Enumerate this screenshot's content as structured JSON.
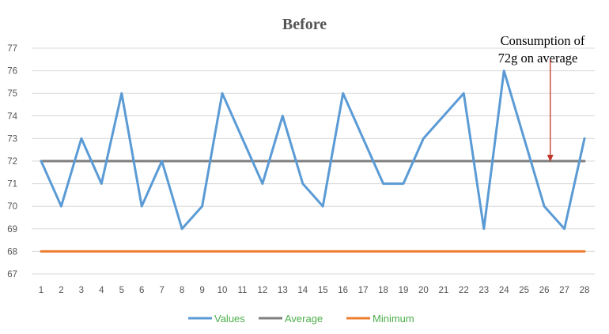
{
  "chart_data": {
    "type": "line",
    "title": "Before",
    "xlabel": "",
    "ylabel": "",
    "x": [
      1,
      2,
      3,
      4,
      5,
      6,
      7,
      8,
      9,
      10,
      11,
      12,
      13,
      14,
      15,
      16,
      17,
      18,
      19,
      20,
      21,
      22,
      23,
      24,
      25,
      26,
      27,
      28
    ],
    "ylim": [
      67,
      77
    ],
    "yticks": [
      67,
      68,
      69,
      70,
      71,
      72,
      73,
      74,
      75,
      76,
      77
    ],
    "grid": true,
    "legend_position": "bottom",
    "series": [
      {
        "name": "Values",
        "color": "#5b9bd5",
        "values": [
          72,
          70,
          73,
          71,
          75,
          70,
          72,
          69,
          70,
          75,
          73,
          71,
          74,
          71,
          70,
          75,
          73,
          71,
          71,
          73,
          74,
          75,
          69,
          76,
          73,
          70,
          69,
          73
        ]
      },
      {
        "name": "Average",
        "color": "#7f7f7f",
        "values": [
          72,
          72,
          72,
          72,
          72,
          72,
          72,
          72,
          72,
          72,
          72,
          72,
          72,
          72,
          72,
          72,
          72,
          72,
          72,
          72,
          72,
          72,
          72,
          72,
          72,
          72,
          72,
          72
        ]
      },
      {
        "name": "Minimum",
        "color": "#ed7d31",
        "values": [
          68,
          68,
          68,
          68,
          68,
          68,
          68,
          68,
          68,
          68,
          68,
          68,
          68,
          68,
          68,
          68,
          68,
          68,
          68,
          68,
          68,
          68,
          68,
          68,
          68,
          68,
          68,
          68
        ]
      }
    ],
    "legend_text_color": "#4daf4a",
    "annotation": {
      "lines": [
        "Consumption of",
        "72g on average"
      ],
      "arrow_from_y": 76.5,
      "arrow_to_y": 72,
      "arrow_x": 26.3,
      "arrow_color": "#c0392b"
    }
  }
}
